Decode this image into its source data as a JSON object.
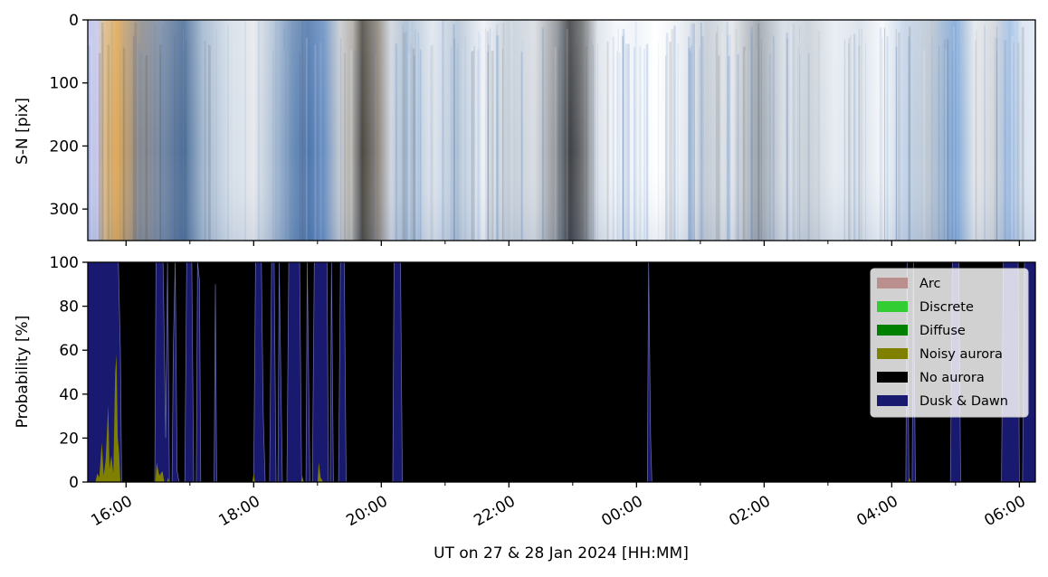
{
  "chart_data": [
    {
      "type": "heatmap",
      "panel": "keogram",
      "ylabel": "S-N [pix]",
      "ylim": [
        350,
        0
      ],
      "yticks": [
        0,
        100,
        200,
        300
      ],
      "ytick_labels": [
        "0",
        "100",
        "200",
        "300"
      ],
      "x_time_range_hours": [
        15.4,
        30.25
      ],
      "column_colors": [
        {
          "t": 15.4,
          "color": "#b9c4ee"
        },
        {
          "t": 15.55,
          "color": "#c7c7e8"
        },
        {
          "t": 15.65,
          "color": "#d9bb8f"
        },
        {
          "t": 15.85,
          "color": "#e0a956"
        },
        {
          "t": 16.05,
          "color": "#b49a78"
        },
        {
          "t": 16.25,
          "color": "#8d8c8e"
        },
        {
          "t": 16.55,
          "color": "#7a8ca6"
        },
        {
          "t": 16.9,
          "color": "#4c6e98"
        },
        {
          "t": 17.2,
          "color": "#a2b7cf"
        },
        {
          "t": 17.6,
          "color": "#d3dde8"
        },
        {
          "t": 18.0,
          "color": "#e6e9ed"
        },
        {
          "t": 18.3,
          "color": "#b2c3d8"
        },
        {
          "t": 18.6,
          "color": "#6e8fb8"
        },
        {
          "t": 18.85,
          "color": "#4f77ad"
        },
        {
          "t": 19.1,
          "color": "#6b91c4"
        },
        {
          "t": 19.35,
          "color": "#c7cbd0"
        },
        {
          "t": 19.55,
          "color": "#b0aca5"
        },
        {
          "t": 19.7,
          "color": "#4d4a44"
        },
        {
          "t": 19.95,
          "color": "#8e877f"
        },
        {
          "t": 20.15,
          "color": "#cfd6df"
        },
        {
          "t": 20.4,
          "color": "#a9bdd3"
        },
        {
          "t": 20.8,
          "color": "#dfe6ee"
        },
        {
          "t": 21.2,
          "color": "#b6c5d6"
        },
        {
          "t": 21.6,
          "color": "#eef2f7"
        },
        {
          "t": 22.0,
          "color": "#c3cdd8"
        },
        {
          "t": 22.4,
          "color": "#d8dde3"
        },
        {
          "t": 22.75,
          "color": "#8f9296"
        },
        {
          "t": 22.95,
          "color": "#3e3f42"
        },
        {
          "t": 23.15,
          "color": "#6e7072"
        },
        {
          "t": 23.4,
          "color": "#dde3ea"
        },
        {
          "t": 23.7,
          "color": "#f5f8fc"
        },
        {
          "t": 24.0,
          "color": "#eef3f9"
        },
        {
          "t": 24.3,
          "color": "#ffffff"
        },
        {
          "t": 24.7,
          "color": "#e9eef4"
        },
        {
          "t": 25.1,
          "color": "#c4ccd5"
        },
        {
          "t": 25.5,
          "color": "#e3e7ec"
        },
        {
          "t": 25.9,
          "color": "#9aa2ab"
        },
        {
          "t": 26.3,
          "color": "#d6dde5"
        },
        {
          "t": 26.7,
          "color": "#c9d0d8"
        },
        {
          "t": 27.1,
          "color": "#e7ecf2"
        },
        {
          "t": 27.5,
          "color": "#d9e1ea"
        },
        {
          "t": 27.85,
          "color": "#f6f8fb"
        },
        {
          "t": 28.2,
          "color": "#c4d4e8"
        },
        {
          "t": 28.6,
          "color": "#bcc7d3"
        },
        {
          "t": 29.0,
          "color": "#7ea6d6"
        },
        {
          "t": 29.3,
          "color": "#e4e8ed"
        },
        {
          "t": 29.6,
          "color": "#d2d6db"
        },
        {
          "t": 29.85,
          "color": "#9fbde3"
        },
        {
          "t": 30.05,
          "color": "#d9e3ef"
        },
        {
          "t": 30.25,
          "color": "#dfe8f4"
        }
      ]
    },
    {
      "type": "area",
      "panel": "probability",
      "ylabel": "Probability [%]",
      "xlabel": "UT on 27 & 28 Jan 2024 [HH:MM]",
      "ylim": [
        0,
        100
      ],
      "yticks": [
        0,
        20,
        40,
        60,
        80,
        100
      ],
      "ytick_labels": [
        "0",
        "20",
        "40",
        "60",
        "80",
        "100"
      ],
      "x_time_range_hours": [
        15.4,
        30.25
      ],
      "x_major_ticks_hours": [
        16,
        18,
        20,
        22,
        24,
        26,
        28,
        30
      ],
      "x_major_tick_labels": [
        "16:00",
        "18:00",
        "20:00",
        "22:00",
        "00:00",
        "02:00",
        "04:00",
        "06:00"
      ],
      "x_minor_ticks_hours": [
        17,
        19,
        21,
        23,
        25,
        27,
        29
      ],
      "legend_position": "upper-right",
      "colors": {
        "Arc": "#bc8f8f",
        "Discrete": "#32cd32",
        "Diffuse": "#008000",
        "Noisy aurora": "#808000",
        "No aurora": "#000000",
        "Dusk & Dawn": "#191970"
      },
      "legend": [
        "Arc",
        "Discrete",
        "Diffuse",
        "Noisy aurora",
        "No aurora",
        "Dusk & Dawn"
      ],
      "series": [
        {
          "name": "Dusk & Dawn",
          "points": [
            [
              15.4,
              100
            ],
            [
              15.88,
              100
            ],
            [
              15.91,
              60
            ],
            [
              15.93,
              0
            ],
            [
              16.45,
              0
            ],
            [
              16.47,
              100
            ],
            [
              16.58,
              100
            ],
            [
              16.62,
              20
            ],
            [
              16.65,
              100
            ],
            [
              16.66,
              70
            ],
            [
              16.68,
              0
            ],
            [
              16.72,
              0
            ],
            [
              16.74,
              60
            ],
            [
              16.77,
              100
            ],
            [
              16.8,
              5
            ],
            [
              16.83,
              0
            ],
            [
              16.92,
              0
            ],
            [
              16.95,
              100
            ],
            [
              17.03,
              100
            ],
            [
              17.06,
              0
            ],
            [
              17.1,
              0
            ],
            [
              17.12,
              100
            ],
            [
              17.15,
              92
            ],
            [
              17.17,
              0
            ],
            [
              17.38,
              0
            ],
            [
              17.4,
              90
            ],
            [
              17.42,
              0
            ],
            [
              18.0,
              0
            ],
            [
              18.03,
              100
            ],
            [
              18.12,
              100
            ],
            [
              18.15,
              30
            ],
            [
              18.18,
              0
            ],
            [
              18.25,
              0
            ],
            [
              18.28,
              100
            ],
            [
              18.32,
              100
            ],
            [
              18.35,
              0
            ],
            [
              18.38,
              0
            ],
            [
              18.4,
              100
            ],
            [
              18.45,
              0
            ],
            [
              18.52,
              0
            ],
            [
              18.55,
              100
            ],
            [
              18.72,
              100
            ],
            [
              18.75,
              3
            ],
            [
              18.78,
              0
            ],
            [
              18.82,
              0
            ],
            [
              18.84,
              100
            ],
            [
              18.88,
              0
            ],
            [
              18.92,
              0
            ],
            [
              18.95,
              100
            ],
            [
              19.15,
              100
            ],
            [
              19.17,
              0
            ],
            [
              19.2,
              0
            ],
            [
              19.22,
              100
            ],
            [
              19.25,
              0
            ],
            [
              19.33,
              0
            ],
            [
              19.36,
              100
            ],
            [
              19.42,
              100
            ],
            [
              19.45,
              0
            ],
            [
              20.18,
              0
            ],
            [
              20.2,
              100
            ],
            [
              20.3,
              100
            ],
            [
              20.33,
              0
            ],
            [
              24.17,
              0
            ],
            [
              24.19,
              100
            ],
            [
              24.22,
              20
            ],
            [
              24.24,
              0
            ],
            [
              28.22,
              0
            ],
            [
              28.24,
              100
            ],
            [
              28.27,
              0
            ],
            [
              28.32,
              0
            ],
            [
              28.34,
              100
            ],
            [
              28.37,
              0
            ],
            [
              28.92,
              0
            ],
            [
              28.95,
              100
            ],
            [
              29.05,
              100
            ],
            [
              29.08,
              0
            ],
            [
              29.72,
              0
            ],
            [
              29.75,
              100
            ],
            [
              29.98,
              100
            ],
            [
              30.0,
              0
            ],
            [
              30.05,
              0
            ],
            [
              30.08,
              100
            ],
            [
              30.25,
              100
            ]
          ]
        },
        {
          "name": "Noisy aurora",
          "points": [
            [
              15.4,
              0
            ],
            [
              15.52,
              0
            ],
            [
              15.55,
              4
            ],
            [
              15.58,
              2
            ],
            [
              15.62,
              18
            ],
            [
              15.65,
              3
            ],
            [
              15.68,
              10
            ],
            [
              15.72,
              35
            ],
            [
              15.74,
              6
            ],
            [
              15.77,
              12
            ],
            [
              15.8,
              4
            ],
            [
              15.83,
              50
            ],
            [
              15.85,
              58
            ],
            [
              15.87,
              20
            ],
            [
              15.89,
              14
            ],
            [
              15.91,
              0
            ],
            [
              16.46,
              0
            ],
            [
              16.48,
              9
            ],
            [
              16.52,
              3
            ],
            [
              16.57,
              5
            ],
            [
              16.6,
              0
            ],
            [
              16.64,
              0
            ],
            [
              16.66,
              2
            ],
            [
              16.68,
              0
            ],
            [
              17.98,
              0
            ],
            [
              18.0,
              4
            ],
            [
              18.02,
              0
            ],
            [
              18.74,
              0
            ],
            [
              18.76,
              3
            ],
            [
              18.78,
              0
            ],
            [
              19.0,
              0
            ],
            [
              19.02,
              9
            ],
            [
              19.05,
              2
            ],
            [
              19.09,
              0
            ],
            [
              28.25,
              0
            ],
            [
              28.28,
              2
            ],
            [
              28.3,
              0
            ],
            [
              30.25,
              0
            ]
          ]
        },
        {
          "name": "No aurora",
          "fill": "remainder"
        }
      ]
    }
  ]
}
